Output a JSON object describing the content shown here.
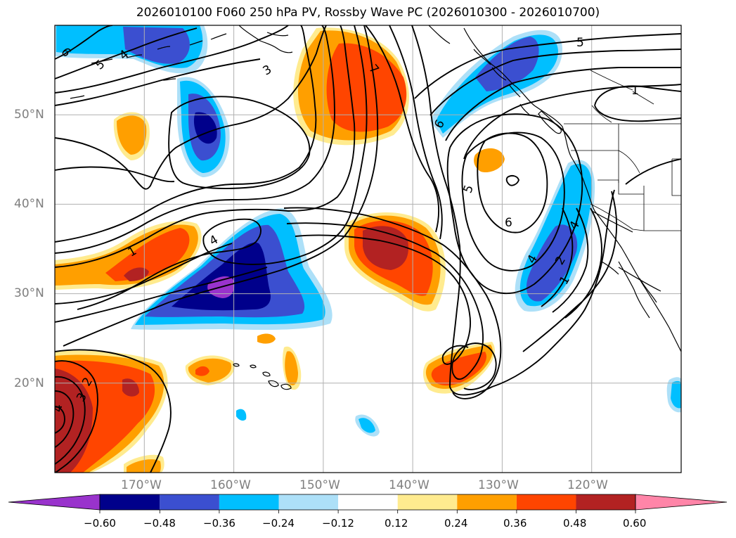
{
  "title": "2026010100 F060 250 hPa PV, Rossby Wave PC (2026010300 - 2026010700)",
  "lat_labels": [
    "50°N",
    "40°N",
    "30°N",
    "20°N"
  ],
  "lon_labels": [
    "170°W",
    "160°W",
    "150°W",
    "140°W",
    "130°W",
    "120°W"
  ],
  "map_extent": {
    "lon": [
      -180,
      -110
    ],
    "lat": [
      10,
      60
    ]
  },
  "colorbar": {
    "ticks": [
      "−0.60",
      "−0.48",
      "−0.36",
      "−0.24",
      "−0.12",
      "0.12",
      "0.24",
      "0.36",
      "0.48",
      "0.60"
    ],
    "colors": [
      "#9933cc",
      "#00008b",
      "#3b4fd0",
      "#00bfff",
      "#ade0f8",
      "#ffffff",
      "#ffeb8f",
      "#ff9f00",
      "#ff4500",
      "#b22222",
      "#ff85a8"
    ],
    "extend": "both"
  },
  "contour_labels": [
    "6",
    "4",
    "5",
    "3",
    "7",
    "5",
    "1",
    "6",
    "5",
    "6",
    "4",
    "4",
    "2",
    "1",
    "4",
    "1",
    "2",
    "3",
    "4"
  ]
}
